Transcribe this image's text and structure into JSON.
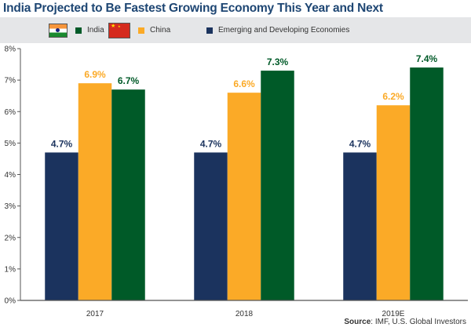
{
  "title": "India Projected to Be Fastest Growing Economy This Year and Next",
  "legend": [
    {
      "label": "India",
      "color": "#005a28",
      "flag": "india-flag"
    },
    {
      "label": "China",
      "color": "#fbaa27",
      "flag": "china-flag"
    },
    {
      "label": "Emerging and Developing Economies",
      "color": "#1b335e",
      "flag": null
    }
  ],
  "source": {
    "label": "Source",
    "text": ": IMF, U.S. Global Investors"
  },
  "chart_data": {
    "type": "bar",
    "title": "India Projected to Be Fastest Growing Economy This Year and Next",
    "xlabel": "",
    "ylabel": "",
    "categories": [
      "2017",
      "2018",
      "2019E"
    ],
    "series": [
      {
        "name": "Emerging and Developing Economies",
        "color": "#1b335e",
        "values": [
          4.7,
          4.7,
          4.7
        ],
        "labels": [
          "4.7%",
          "4.7%",
          "4.7%"
        ]
      },
      {
        "name": "China",
        "color": "#fbaa27",
        "values": [
          6.9,
          6.6,
          6.2
        ],
        "labels": [
          "6.9%",
          "6.6%",
          "6.2%"
        ]
      },
      {
        "name": "India",
        "color": "#005a28",
        "values": [
          6.7,
          7.3,
          7.4
        ],
        "labels": [
          "6.7%",
          "7.3%",
          "7.4%"
        ]
      }
    ],
    "ylim": [
      0,
      8
    ],
    "yticks": [
      "0%",
      "1%",
      "2%",
      "3%",
      "4%",
      "5%",
      "6%",
      "7%",
      "8%"
    ],
    "grid": false,
    "legend_position": "top"
  }
}
